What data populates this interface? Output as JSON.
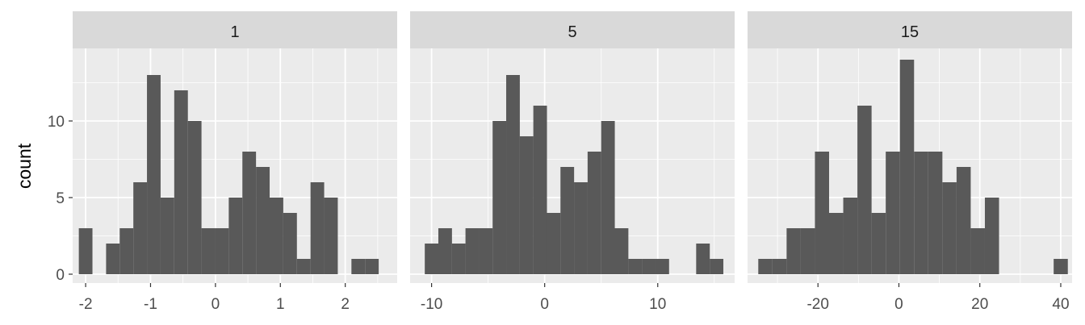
{
  "chart_data": {
    "type": "bar",
    "ylabel": "count",
    "xlabel": "",
    "ylim": [
      0,
      14
    ],
    "y_ticks": [
      0,
      5,
      10
    ],
    "colors": {
      "bar": "#595959",
      "panel_bg": "#ebebeb",
      "grid": "#ffffff",
      "strip_bg": "#d9d9d9",
      "tick": "#333333"
    },
    "panels": [
      {
        "label": "1",
        "xlim": [
          -2.2,
          2.8
        ],
        "x_ticks": [
          -2,
          -1,
          0,
          1,
          2
        ],
        "bin_width": 0.21,
        "bins": [
          {
            "x": -2.0,
            "count": 3
          },
          {
            "x": -1.79,
            "count": 0
          },
          {
            "x": -1.58,
            "count": 2
          },
          {
            "x": -1.37,
            "count": 3
          },
          {
            "x": -1.16,
            "count": 6
          },
          {
            "x": -0.95,
            "count": 13
          },
          {
            "x": -0.74,
            "count": 5
          },
          {
            "x": -0.53,
            "count": 12
          },
          {
            "x": -0.32,
            "count": 10
          },
          {
            "x": -0.11,
            "count": 3
          },
          {
            "x": 0.1,
            "count": 3
          },
          {
            "x": 0.31,
            "count": 5
          },
          {
            "x": 0.52,
            "count": 8
          },
          {
            "x": 0.73,
            "count": 7
          },
          {
            "x": 0.94,
            "count": 5
          },
          {
            "x": 1.15,
            "count": 4
          },
          {
            "x": 1.36,
            "count": 1
          },
          {
            "x": 1.57,
            "count": 6
          },
          {
            "x": 1.78,
            "count": 5
          },
          {
            "x": 1.99,
            "count": 0
          },
          {
            "x": 2.2,
            "count": 1
          },
          {
            "x": 2.41,
            "count": 1
          }
        ]
      },
      {
        "label": "5",
        "xlim": [
          -11.9,
          16.8
        ],
        "x_ticks": [
          -10,
          0,
          10
        ],
        "bin_width": 1.205,
        "bins": [
          {
            "x": -10.0,
            "count": 2
          },
          {
            "x": -8.8,
            "count": 3
          },
          {
            "x": -7.6,
            "count": 2
          },
          {
            "x": -6.4,
            "count": 3
          },
          {
            "x": -5.2,
            "count": 3
          },
          {
            "x": -4.0,
            "count": 10
          },
          {
            "x": -2.8,
            "count": 13
          },
          {
            "x": -1.6,
            "count": 9
          },
          {
            "x": -0.4,
            "count": 11
          },
          {
            "x": 0.8,
            "count": 4
          },
          {
            "x": 2.0,
            "count": 7
          },
          {
            "x": 3.2,
            "count": 6
          },
          {
            "x": 4.4,
            "count": 8
          },
          {
            "x": 5.6,
            "count": 10
          },
          {
            "x": 6.8,
            "count": 3
          },
          {
            "x": 8.0,
            "count": 1
          },
          {
            "x": 9.2,
            "count": 1
          },
          {
            "x": 10.4,
            "count": 1
          },
          {
            "x": 11.6,
            "count": 0
          },
          {
            "x": 12.8,
            "count": 0
          },
          {
            "x": 14.0,
            "count": 2
          },
          {
            "x": 15.2,
            "count": 1
          }
        ]
      },
      {
        "label": "15",
        "xlim": [
          -37.4,
          42.8
        ],
        "x_ticks": [
          -20,
          0,
          20,
          40
        ],
        "bin_width": 3.5,
        "bins": [
          {
            "x": -33.0,
            "count": 1
          },
          {
            "x": -29.5,
            "count": 1
          },
          {
            "x": -26.0,
            "count": 3
          },
          {
            "x": -22.5,
            "count": 3
          },
          {
            "x": -19.0,
            "count": 8
          },
          {
            "x": -15.5,
            "count": 4
          },
          {
            "x": -12.0,
            "count": 5
          },
          {
            "x": -8.5,
            "count": 11
          },
          {
            "x": -5.0,
            "count": 4
          },
          {
            "x": -1.5,
            "count": 8
          },
          {
            "x": 2.0,
            "count": 14
          },
          {
            "x": 5.5,
            "count": 8
          },
          {
            "x": 9.0,
            "count": 8
          },
          {
            "x": 12.5,
            "count": 6
          },
          {
            "x": 16.0,
            "count": 7
          },
          {
            "x": 19.5,
            "count": 3
          },
          {
            "x": 23.0,
            "count": 5
          },
          {
            "x": 26.5,
            "count": 0
          },
          {
            "x": 30.0,
            "count": 0
          },
          {
            "x": 33.5,
            "count": 0
          },
          {
            "x": 37.0,
            "count": 0
          },
          {
            "x": 40.0,
            "count": 1
          }
        ]
      }
    ]
  }
}
